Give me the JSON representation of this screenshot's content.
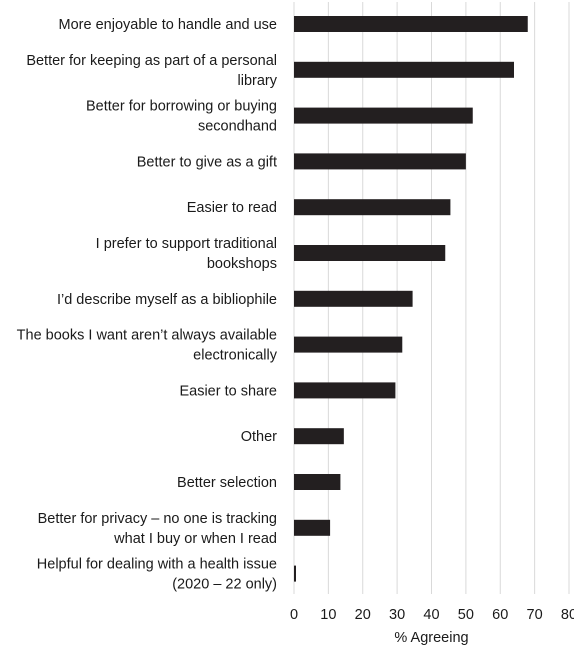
{
  "chart_data": {
    "type": "bar",
    "orientation": "horizontal",
    "categories": [
      [
        "More enjoyable to handle and use"
      ],
      [
        "Better for keeping as part of a personal",
        "library"
      ],
      [
        "Better for borrowing or buying",
        "secondhand"
      ],
      [
        "Better to give as a gift"
      ],
      [
        "Easier to read"
      ],
      [
        "I prefer to support traditional",
        "bookshops"
      ],
      [
        "I’d describe myself as a bibliophile"
      ],
      [
        "The books I want aren’t always available",
        "electronically"
      ],
      [
        "Easier to share"
      ],
      [
        "Other"
      ],
      [
        "Better selection"
      ],
      [
        "Better for privacy – no one is tracking",
        "what I buy or when I read"
      ],
      [
        "Helpful for dealing with a health issue",
        "(2020 – 22 only)"
      ]
    ],
    "values": [
      68,
      64,
      52,
      50,
      45.5,
      44,
      34.5,
      31.5,
      29.5,
      14.5,
      13.5,
      10.5,
      0.5
    ],
    "xlabel": "% Agreeing",
    "xticks": [
      0,
      10,
      20,
      30,
      40,
      50,
      60,
      70,
      80
    ],
    "xlim": [
      0,
      80
    ],
    "grid": "vertical",
    "colors": {
      "bar": "#231f20",
      "grid": "#d9d9d9",
      "text": "#1a1a1a"
    }
  }
}
